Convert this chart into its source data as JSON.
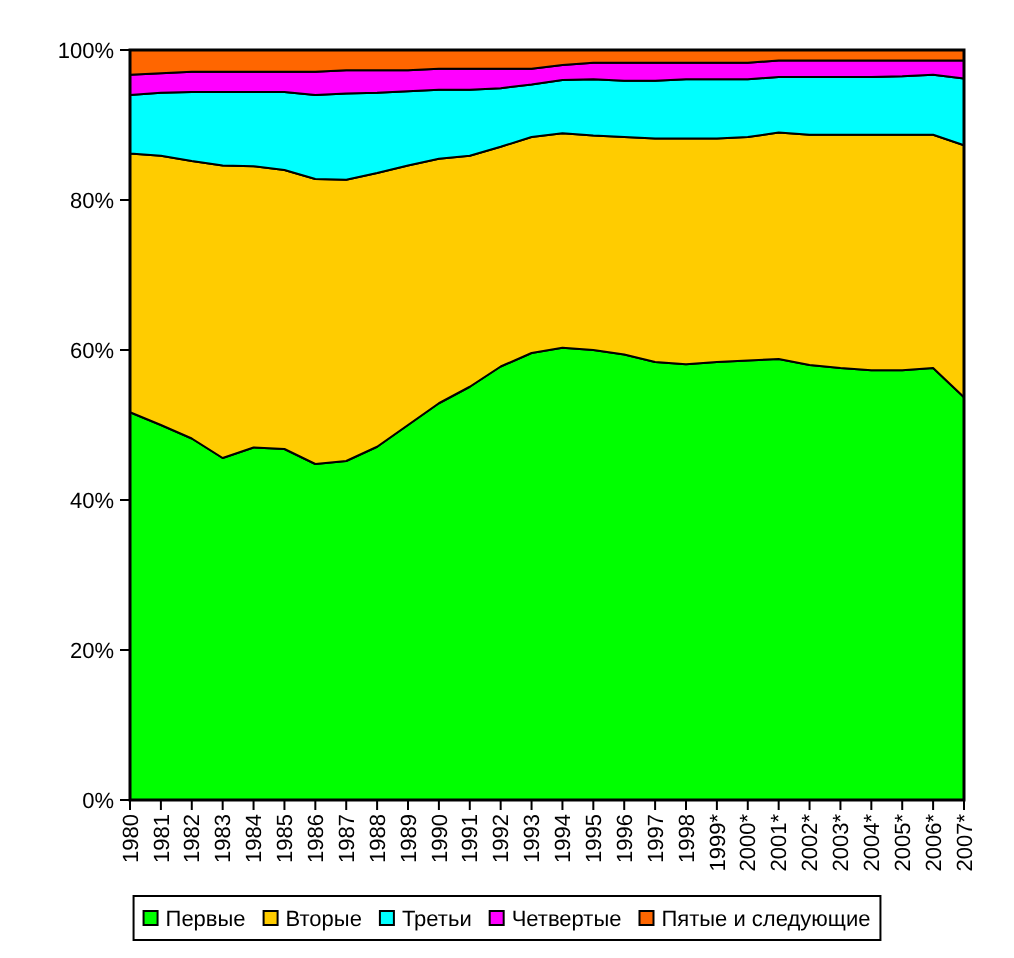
{
  "chart_data": {
    "type": "area",
    "stacked": true,
    "categories": [
      "1980",
      "1981",
      "1982",
      "1983",
      "1984",
      "1985",
      "1986",
      "1987",
      "1988",
      "1989",
      "1990",
      "1991",
      "1992",
      "1993",
      "1994",
      "1995",
      "1996",
      "1997",
      "1998",
      "1999*",
      "2000*",
      "2001*",
      "2002*",
      "2003*",
      "2004*",
      "2005*",
      "2006*",
      "2007*"
    ],
    "series": [
      {
        "name": "Первые",
        "color": "#00ff00",
        "values": [
          51.7,
          50.0,
          48.2,
          45.6,
          47.0,
          46.8,
          44.8,
          45.2,
          47.1,
          50.0,
          52.9,
          55.1,
          57.8,
          59.6,
          60.3,
          60.0,
          59.4,
          58.4,
          58.1,
          58.4,
          58.6,
          58.8,
          58.0,
          57.6,
          57.3,
          57.3,
          57.6,
          53.7
        ]
      },
      {
        "name": "Вторые",
        "color": "#ffcc00",
        "values": [
          34.5,
          35.9,
          37.0,
          39.0,
          37.5,
          37.2,
          38.0,
          37.5,
          36.5,
          34.6,
          32.6,
          30.8,
          29.3,
          28.8,
          28.6,
          28.6,
          29.0,
          29.8,
          30.1,
          29.8,
          29.8,
          30.2,
          30.7,
          31.1,
          31.4,
          31.4,
          31.1,
          33.6
        ]
      },
      {
        "name": "Третьи",
        "color": "#00ffff",
        "values": [
          7.8,
          8.4,
          9.2,
          9.8,
          9.9,
          10.4,
          11.2,
          11.5,
          10.7,
          9.9,
          9.2,
          8.8,
          7.8,
          7.0,
          7.1,
          7.5,
          7.5,
          7.7,
          7.9,
          7.9,
          7.7,
          7.4,
          7.7,
          7.7,
          7.7,
          7.8,
          8.0,
          8.9
        ]
      },
      {
        "name": "Четвертые",
        "color": "#ff00ff",
        "values": [
          2.7,
          2.6,
          2.7,
          2.7,
          2.7,
          2.7,
          3.1,
          3.1,
          3.0,
          2.8,
          2.8,
          2.8,
          2.6,
          2.1,
          2.0,
          2.2,
          2.4,
          2.4,
          2.2,
          2.2,
          2.2,
          2.2,
          2.2,
          2.2,
          2.2,
          2.1,
          1.9,
          2.4
        ]
      },
      {
        "name": "Пятые и следующие",
        "color": "#ff6600",
        "values": [
          3.3,
          3.1,
          2.9,
          2.9,
          2.9,
          2.9,
          2.9,
          2.7,
          2.7,
          2.7,
          2.5,
          2.5,
          2.5,
          2.5,
          2.0,
          1.7,
          1.7,
          1.7,
          1.7,
          1.7,
          1.7,
          1.4,
          1.4,
          1.4,
          1.4,
          1.4,
          1.4,
          1.4
        ]
      }
    ],
    "ylim": [
      0,
      100
    ],
    "yticks": [
      {
        "value": 0,
        "label": "0%"
      },
      {
        "value": 20,
        "label": "20%"
      },
      {
        "value": 40,
        "label": "40%"
      },
      {
        "value": 60,
        "label": "60%"
      },
      {
        "value": 80,
        "label": "80%"
      },
      {
        "value": 100,
        "label": "100%"
      }
    ],
    "legend": "bottom"
  }
}
